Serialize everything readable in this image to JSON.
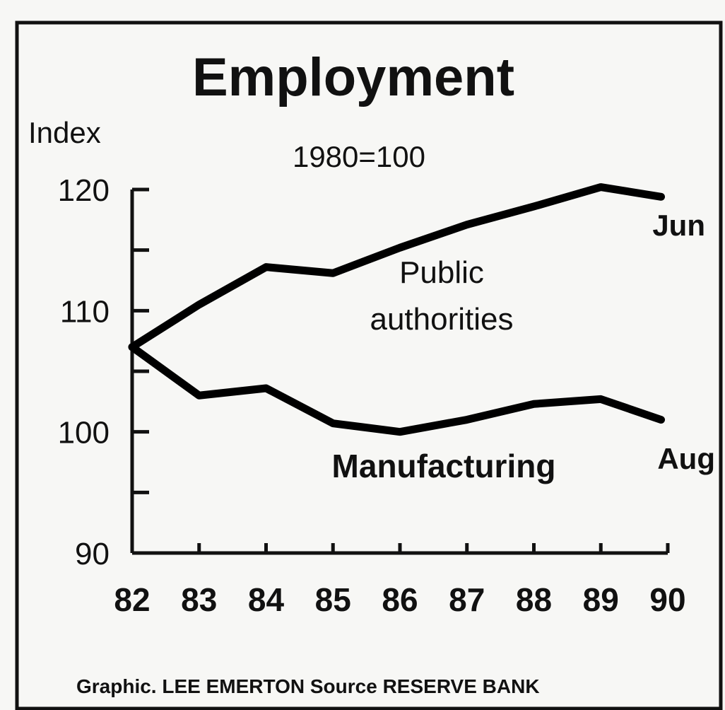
{
  "chart_data": {
    "type": "line",
    "title": "Employment",
    "y_axis_label": "Index",
    "subtitle": "1980=100",
    "footer": "Graphic. LEE EMERTON   Source RESERVE BANK",
    "x": [
      82,
      83,
      84,
      85,
      86,
      87,
      88,
      89,
      89.9
    ],
    "xlim": [
      82,
      90
    ],
    "xticks": [
      82,
      83,
      84,
      85,
      86,
      87,
      88,
      89,
      90
    ],
    "ylim": [
      90,
      120
    ],
    "yticks": [
      90,
      100,
      110,
      120
    ],
    "minor_yticks": [
      95,
      105,
      115
    ],
    "series": [
      {
        "name": "Public authorities",
        "color": "#000000",
        "end_label": "Jun",
        "values": [
          107,
          110.5,
          113.6,
          113.1,
          115.2,
          117.1,
          118.6,
          120.2,
          119.4
        ]
      },
      {
        "name": "Manufacturing",
        "color": "#000000",
        "end_label": "Aug",
        "values": [
          107,
          103.0,
          103.6,
          100.7,
          100.0,
          101.0,
          102.3,
          102.7,
          101.0
        ]
      }
    ]
  }
}
